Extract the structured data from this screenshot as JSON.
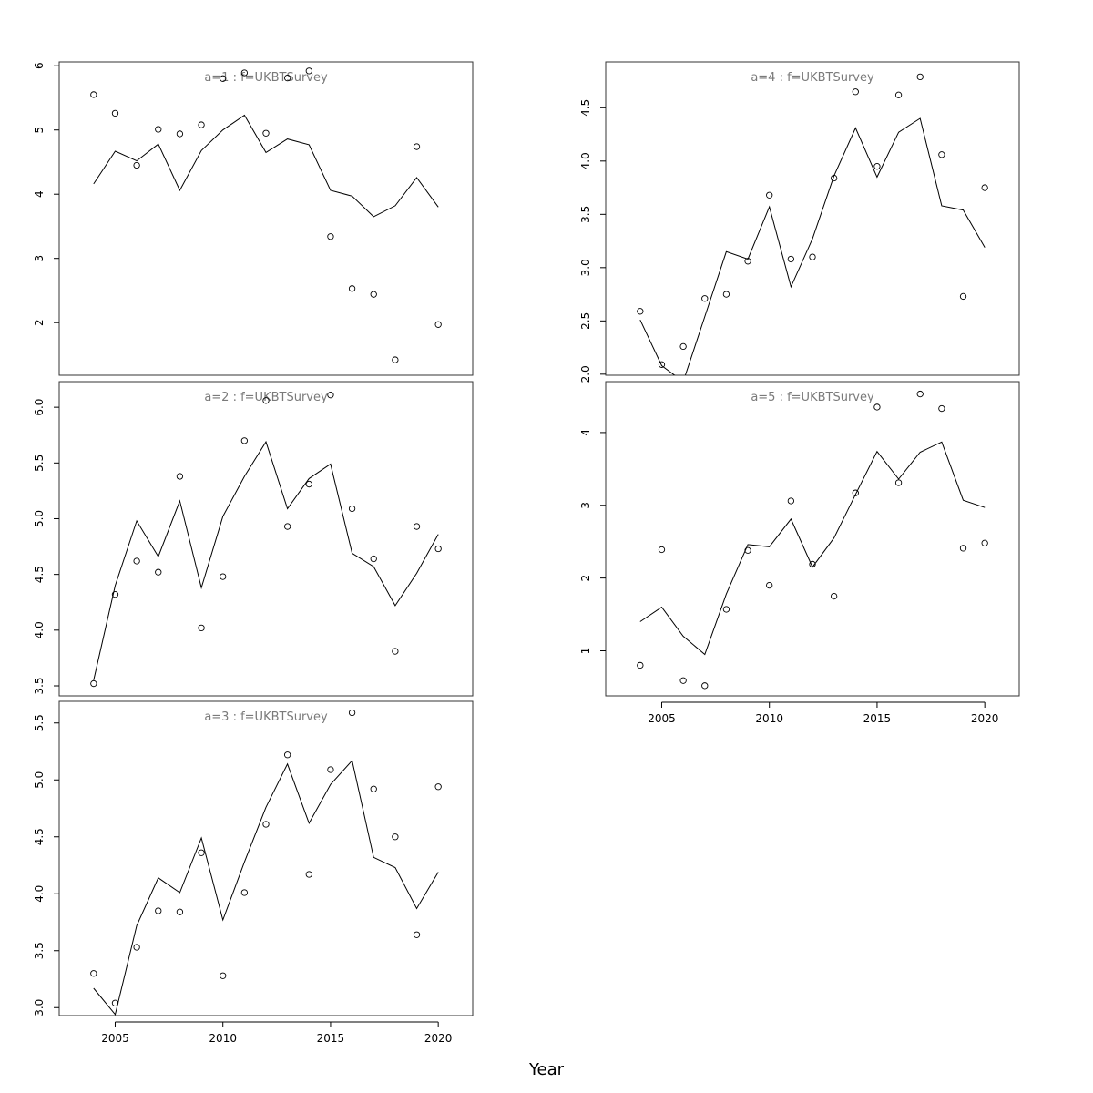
{
  "chart_data": {
    "type": "line",
    "xlabel": "Year",
    "x_ticks": [
      2005,
      2010,
      2015,
      2020
    ],
    "xlim": [
      2002.4,
      2021.6
    ],
    "series_style": {
      "observed": "points",
      "fitted": "line"
    },
    "panels": [
      {
        "label": "a=1  :  f=UKBTSurvey",
        "ylim": [
          1.18,
          6.06
        ],
        "y_ticks": [
          2,
          3,
          4,
          5,
          6
        ],
        "x": [
          2004,
          2005,
          2006,
          2007,
          2008,
          2009,
          2010,
          2011,
          2012,
          2013,
          2014,
          2015,
          2016,
          2017,
          2018,
          2019,
          2020
        ],
        "observed": [
          5.55,
          5.26,
          4.45,
          5.01,
          4.94,
          5.08,
          5.8,
          5.89,
          4.95,
          5.81,
          5.92,
          3.34,
          2.53,
          2.44,
          1.42,
          4.74,
          1.97
        ],
        "fitted": [
          4.16,
          4.67,
          4.52,
          4.78,
          4.06,
          4.68,
          5.0,
          5.23,
          4.65,
          4.86,
          4.77,
          4.06,
          3.97,
          3.65,
          3.82,
          4.26,
          3.8
        ]
      },
      {
        "label": "a=2  :  f=UKBTSurvey",
        "ylim": [
          3.41,
          6.23
        ],
        "y_ticks": [
          3.5,
          4.0,
          4.5,
          5.0,
          5.5,
          6.0
        ],
        "x": [
          2004,
          2005,
          2006,
          2007,
          2008,
          2009,
          2010,
          2011,
          2012,
          2013,
          2014,
          2015,
          2016,
          2017,
          2018,
          2019,
          2020
        ],
        "observed": [
          3.52,
          4.32,
          4.62,
          4.52,
          5.38,
          4.02,
          4.48,
          5.7,
          6.06,
          4.93,
          5.31,
          6.11,
          5.09,
          4.64,
          3.81,
          4.93,
          4.73
        ],
        "fitted": [
          3.55,
          4.4,
          4.98,
          4.66,
          5.16,
          4.38,
          5.02,
          5.38,
          5.69,
          5.09,
          5.36,
          5.49,
          4.69,
          4.57,
          4.22,
          4.51,
          4.86
        ]
      },
      {
        "label": "a=3  :  f=UKBTSurvey",
        "ylim": [
          2.93,
          5.69
        ],
        "y_ticks": [
          3.0,
          3.5,
          4.0,
          4.5,
          5.0,
          5.5
        ],
        "x": [
          2004,
          2005,
          2006,
          2007,
          2008,
          2009,
          2010,
          2011,
          2012,
          2013,
          2014,
          2015,
          2016,
          2017,
          2018,
          2019,
          2020
        ],
        "observed": [
          3.3,
          3.04,
          3.53,
          3.85,
          3.84,
          4.36,
          3.28,
          4.01,
          4.61,
          5.22,
          4.17,
          5.09,
          5.59,
          4.92,
          4.5,
          3.64,
          4.94
        ],
        "fitted": [
          3.17,
          2.94,
          3.72,
          4.14,
          4.01,
          4.49,
          3.77,
          4.28,
          4.76,
          5.14,
          4.62,
          4.96,
          5.17,
          4.32,
          4.23,
          3.87,
          4.19
        ]
      },
      {
        "label": "a=4  :  f=UKBTSurvey",
        "ylim": [
          1.99,
          4.93
        ],
        "y_ticks": [
          2.0,
          2.5,
          3.0,
          3.5,
          4.0,
          4.5
        ],
        "x": [
          2004,
          2005,
          2006,
          2007,
          2008,
          2009,
          2010,
          2011,
          2012,
          2013,
          2014,
          2015,
          2016,
          2017,
          2018,
          2019,
          2020
        ],
        "observed": [
          2.59,
          2.09,
          2.26,
          2.71,
          2.75,
          3.06,
          3.68,
          3.08,
          3.1,
          3.84,
          4.65,
          3.95,
          4.62,
          4.79,
          4.06,
          2.73,
          3.75
        ],
        "fitted": [
          2.51,
          2.08,
          1.93,
          2.54,
          3.15,
          3.08,
          3.57,
          2.82,
          3.27,
          3.86,
          4.31,
          3.85,
          4.27,
          4.4,
          3.58,
          3.54,
          3.19
        ]
      },
      {
        "label": "a=5  :  f=UKBTSurvey",
        "ylim": [
          0.38,
          4.7
        ],
        "y_ticks": [
          1,
          2,
          3,
          4
        ],
        "x": [
          2004,
          2005,
          2006,
          2007,
          2008,
          2009,
          2010,
          2011,
          2012,
          2013,
          2014,
          2015,
          2016,
          2017,
          2018,
          2019,
          2020
        ],
        "observed": [
          0.8,
          2.39,
          0.59,
          0.52,
          1.57,
          2.38,
          1.9,
          3.06,
          2.19,
          1.75,
          3.17,
          4.35,
          3.31,
          4.53,
          4.33,
          2.41,
          2.48
        ],
        "fitted": [
          1.4,
          1.6,
          1.2,
          0.95,
          1.78,
          2.46,
          2.43,
          2.81,
          2.15,
          2.55,
          3.15,
          3.74,
          3.36,
          3.73,
          3.87,
          3.07,
          2.97
        ]
      }
    ]
  }
}
